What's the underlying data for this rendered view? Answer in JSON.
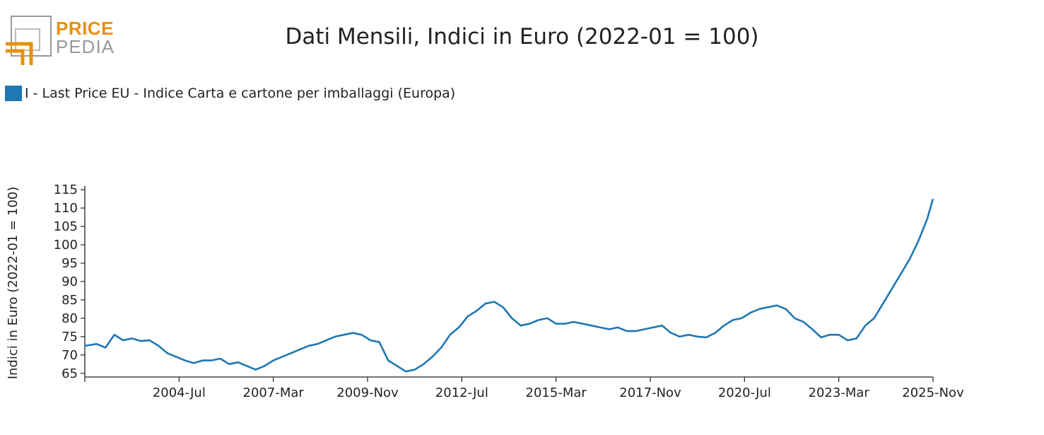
{
  "logo": {
    "line1": "PRICE",
    "line2": "PEDIA",
    "accent_color": "#e8900e",
    "gray_color": "#9a9a9a"
  },
  "chart_data": {
    "type": "line",
    "title": "Dati Mensili, Indici in Euro (2022-01 = 100)",
    "ylabel": "Indici in Euro (2022-01 = 100)",
    "xlabel": "",
    "ylim": [
      64,
      116
    ],
    "y_ticks": [
      65,
      70,
      75,
      80,
      85,
      90,
      95,
      100,
      105,
      110,
      115
    ],
    "x_range": [
      "2001-11",
      "2025-11"
    ],
    "x_ticks": [
      "2004-Jul",
      "2007-Mar",
      "2009-Nov",
      "2012-Jul",
      "2015-Mar",
      "2017-Nov",
      "2020-Jul",
      "2023-Mar",
      "2025-Nov"
    ],
    "grid": false,
    "legend_position": "top-left",
    "series": [
      {
        "name": "I - Last Price EU - Indice Carta e cartone per imballaggi (Europa)",
        "color": "#1f77b4",
        "points": [
          [
            "2001-11",
            72.5
          ],
          [
            "2002-03",
            73.0
          ],
          [
            "2002-06",
            72.0
          ],
          [
            "2002-09",
            75.5
          ],
          [
            "2002-12",
            74.0
          ],
          [
            "2003-03",
            74.5
          ],
          [
            "2003-06",
            73.8
          ],
          [
            "2003-09",
            74.0
          ],
          [
            "2003-12",
            72.5
          ],
          [
            "2004-03",
            70.5
          ],
          [
            "2004-06",
            69.5
          ],
          [
            "2004-09",
            68.5
          ],
          [
            "2004-12",
            67.8
          ],
          [
            "2005-03",
            68.5
          ],
          [
            "2005-06",
            68.5
          ],
          [
            "2005-09",
            69.0
          ],
          [
            "2005-12",
            67.5
          ],
          [
            "2006-03",
            68.0
          ],
          [
            "2006-06",
            67.0
          ],
          [
            "2006-09",
            66.0
          ],
          [
            "2006-12",
            67.0
          ],
          [
            "2007-03",
            68.5
          ],
          [
            "2007-06",
            69.5
          ],
          [
            "2007-09",
            70.5
          ],
          [
            "2007-12",
            71.5
          ],
          [
            "2008-03",
            72.5
          ],
          [
            "2008-06",
            73.0
          ],
          [
            "2008-09",
            74.0
          ],
          [
            "2008-12",
            75.0
          ],
          [
            "2009-03",
            75.5
          ],
          [
            "2009-06",
            76.0
          ],
          [
            "2009-09",
            75.5
          ],
          [
            "2009-12",
            74.0
          ],
          [
            "2010-03",
            73.5
          ],
          [
            "2010-06",
            68.5
          ],
          [
            "2010-09",
            67.0
          ],
          [
            "2010-12",
            65.5
          ],
          [
            "2011-03",
            66.0
          ],
          [
            "2011-06",
            67.5
          ],
          [
            "2011-09",
            69.5
          ],
          [
            "2011-12",
            72.0
          ],
          [
            "2012-03",
            75.5
          ],
          [
            "2012-06",
            77.5
          ],
          [
            "2012-09",
            80.5
          ],
          [
            "2012-12",
            82.0
          ],
          [
            "2013-03",
            84.0
          ],
          [
            "2013-06",
            84.5
          ],
          [
            "2013-09",
            83.0
          ],
          [
            "2013-12",
            80.0
          ],
          [
            "2014-03",
            78.0
          ],
          [
            "2014-06",
            78.5
          ],
          [
            "2014-09",
            79.5
          ],
          [
            "2014-12",
            80.0
          ],
          [
            "2015-03",
            78.5
          ],
          [
            "2015-06",
            78.5
          ],
          [
            "2015-09",
            79.0
          ],
          [
            "2015-12",
            78.5
          ],
          [
            "2016-03",
            78.0
          ],
          [
            "2016-06",
            77.5
          ],
          [
            "2016-09",
            77.0
          ],
          [
            "2016-12",
            77.5
          ],
          [
            "2017-03",
            76.5
          ],
          [
            "2017-06",
            76.5
          ],
          [
            "2017-09",
            77.0
          ],
          [
            "2017-12",
            77.5
          ],
          [
            "2018-03",
            78.0
          ],
          [
            "2018-06",
            76.0
          ],
          [
            "2018-09",
            75.0
          ],
          [
            "2018-12",
            75.5
          ],
          [
            "2019-03",
            75.0
          ],
          [
            "2019-06",
            74.8
          ],
          [
            "2019-09",
            76.0
          ],
          [
            "2019-12",
            78.0
          ],
          [
            "2020-03",
            79.5
          ],
          [
            "2020-06",
            80.0
          ],
          [
            "2020-09",
            81.5
          ],
          [
            "2020-12",
            82.5
          ],
          [
            "2021-03",
            83.0
          ],
          [
            "2021-06",
            83.5
          ],
          [
            "2021-09",
            82.5
          ],
          [
            "2021-12",
            80.0
          ],
          [
            "2022-03",
            79.0
          ],
          [
            "2022-06",
            77.0
          ],
          [
            "2022-09",
            74.8
          ],
          [
            "2022-12",
            75.5
          ],
          [
            "2023-03",
            75.5
          ],
          [
            "2023-06",
            74.0
          ],
          [
            "2023-09",
            74.5
          ],
          [
            "2023-12",
            78.0
          ],
          [
            "2024-03",
            80.0
          ],
          [
            "2024-06",
            84.0
          ],
          [
            "2024-09",
            88.0
          ],
          [
            "2024-12",
            92.0
          ],
          [
            "2025-03",
            96.0
          ],
          [
            "2025-06",
            101.0
          ],
          [
            "2025-09",
            107.0
          ],
          [
            "2025-11",
            112.5
          ]
        ]
      }
    ]
  }
}
